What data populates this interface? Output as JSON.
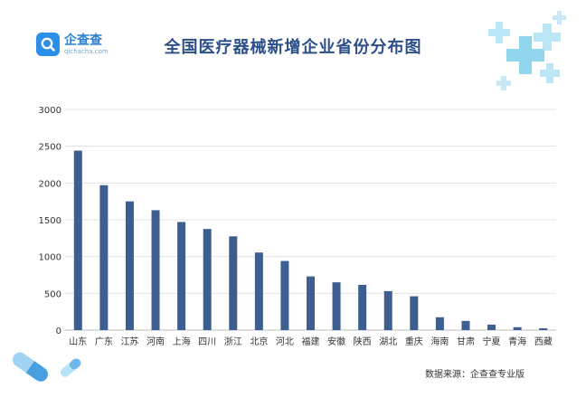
{
  "brand": {
    "logo_cn": "企查查",
    "logo_en": "qichacha.com",
    "icon": "qichacha-logo-icon"
  },
  "title": "全国医疗器械新增企业省份分布图",
  "source": "数据来源：企查查专业版",
  "colors": {
    "bar": "#3d5f8f",
    "title": "#2c4f8a",
    "grid": "#e3e3e3",
    "accent_light": "#7fd0ec",
    "accent": "#4fa8e0"
  },
  "chart_data": {
    "type": "bar",
    "title": "全国医疗器械新增企业省份分布图",
    "categories": [
      "山东",
      "广东",
      "江苏",
      "河南",
      "上海",
      "四川",
      "浙江",
      "北京",
      "河北",
      "福建",
      "安徽",
      "陕西",
      "湖北",
      "重庆",
      "海南",
      "甘肃",
      "宁夏",
      "青海",
      "西藏"
    ],
    "values": [
      2440,
      1970,
      1750,
      1630,
      1470,
      1375,
      1275,
      1055,
      940,
      730,
      650,
      615,
      530,
      460,
      175,
      125,
      75,
      40,
      25
    ],
    "yticks": [
      0,
      500,
      1000,
      1500,
      2000,
      2500,
      3000
    ],
    "ylim": [
      0,
      3000
    ],
    "xlabel": "",
    "ylabel": "",
    "grid": true,
    "legend": "none"
  }
}
